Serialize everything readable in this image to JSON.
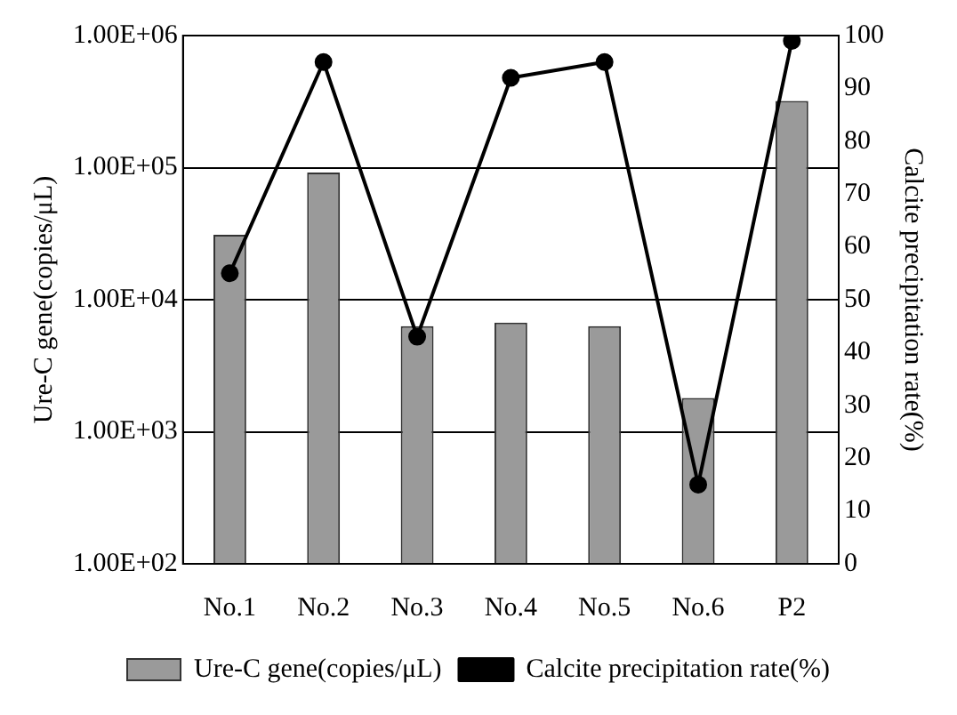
{
  "chart_data": {
    "type": "bar",
    "categories": [
      "No.1",
      "No.2",
      "No.3",
      "No.4",
      "No.5",
      "No.6",
      "P2"
    ],
    "series": [
      {
        "name": "Ure-C gene(copies/μL)",
        "color": "#9a9a9a",
        "values": [
          31000,
          92000,
          6300,
          6700,
          6300,
          1800,
          320000
        ]
      },
      {
        "name": "Calcite precipitation rate(%)",
        "type": "line",
        "axis": "y2",
        "color": "#000000",
        "values": [
          55,
          95,
          43,
          92,
          95,
          15,
          99
        ]
      }
    ],
    "ylabel": "Ure-C gene(copies/μL)",
    "y2label": "Calcite precipitation rate(%)",
    "log": "y",
    "ylim": [
      100,
      1000000
    ],
    "yticks": [
      {
        "value": 100,
        "label": "1.00E+02"
      },
      {
        "value": 1000,
        "label": "1.00E+03"
      },
      {
        "value": 10000,
        "label": "1.00E+04"
      },
      {
        "value": 100000,
        "label": "1.00E+05"
      },
      {
        "value": 1000000,
        "label": "1.00E+06"
      }
    ],
    "y2lim": [
      0,
      100
    ],
    "y2ticks": [
      0,
      10,
      20,
      30,
      40,
      50,
      60,
      70,
      80,
      90,
      100
    ],
    "grid": "y",
    "legend": "bottom",
    "marker": "circle",
    "line_style": "solid"
  }
}
